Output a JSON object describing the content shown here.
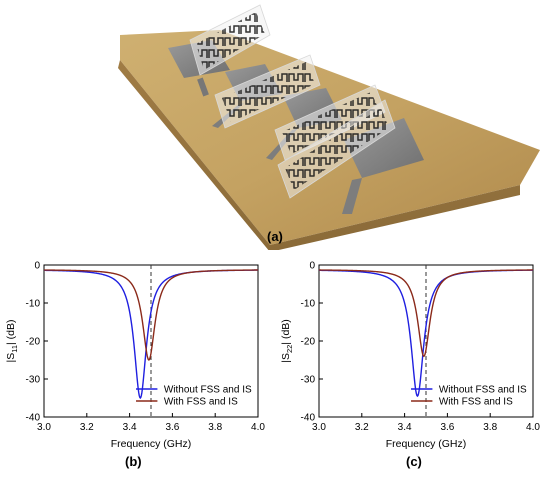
{
  "photo": {
    "caption": "(a)"
  },
  "panels": {
    "b": "(b)",
    "c": "(c)"
  },
  "colors": {
    "without": "#1f1fe0",
    "with": "#8b2a1a",
    "marker": "#333333"
  },
  "chart_data": [
    {
      "type": "line",
      "panel": "(b)",
      "xlabel": "Frequency (GHz)",
      "ylabel": "|S11| (dB)",
      "ylabel_main": "|S",
      "ylabel_sub": "11",
      "ylabel_tail": "| (dB)",
      "xlim": [
        3.0,
        4.0
      ],
      "ylim": [
        -40,
        0
      ],
      "xticks": [
        "3.0",
        "3.2",
        "3.4",
        "3.6",
        "3.8",
        "4.0"
      ],
      "yticks": [
        "0",
        "-10",
        "-20",
        "-30",
        "-40"
      ],
      "marker_line_x": 3.5,
      "grid": false,
      "legend_position": "bottom-right",
      "series": [
        {
          "name": "Without FSS and IS",
          "resonance": 3.45,
          "min_db": -35.0,
          "width": 0.035
        },
        {
          "name": "With FSS and IS",
          "resonance": 3.49,
          "min_db": -25.0,
          "width": 0.035
        }
      ]
    },
    {
      "type": "line",
      "panel": "(c)",
      "xlabel": "Frequency (GHz)",
      "ylabel": "|S22| (dB)",
      "ylabel_main": "|S",
      "ylabel_sub": "22",
      "ylabel_tail": "| (dB)",
      "xlim": [
        3.0,
        4.0
      ],
      "ylim": [
        -40,
        0
      ],
      "xticks": [
        "3.0",
        "3.2",
        "3.4",
        "3.6",
        "3.8",
        "4.0"
      ],
      "yticks": [
        "0",
        "-10",
        "-20",
        "-30",
        "-40"
      ],
      "marker_line_x": 3.5,
      "grid": false,
      "legend_position": "bottom-right",
      "series": [
        {
          "name": "Without FSS and IS",
          "resonance": 3.46,
          "min_db": -34.5,
          "width": 0.036
        },
        {
          "name": "With FSS and IS",
          "resonance": 3.49,
          "min_db": -24.0,
          "width": 0.035
        }
      ]
    }
  ]
}
